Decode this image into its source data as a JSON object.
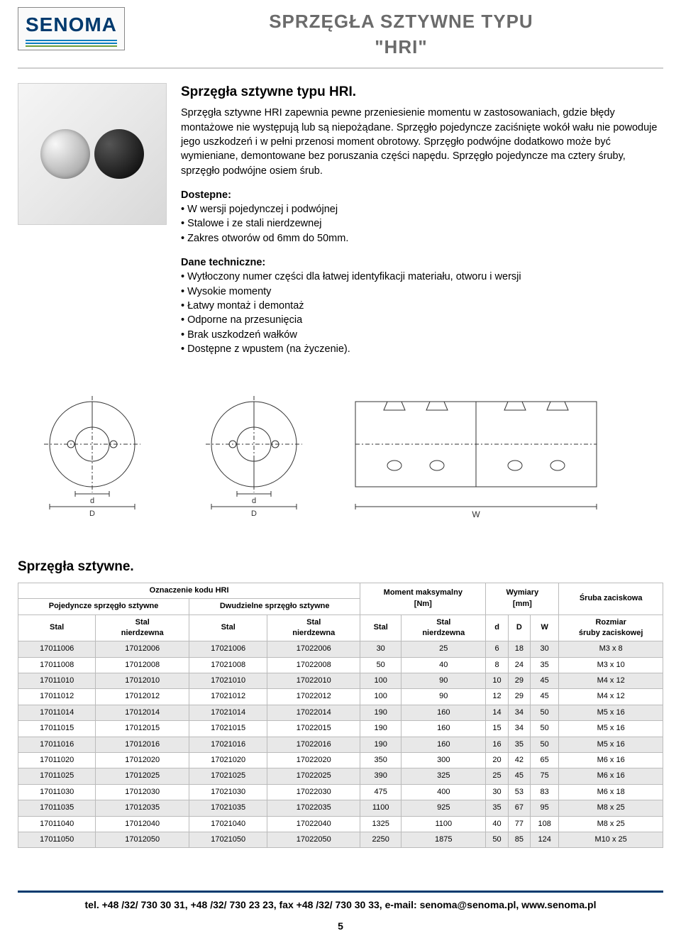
{
  "logo": {
    "text": "SENOMA",
    "stripe_colors": [
      "#0b7dbf",
      "#0b7dbf",
      "#6c9e3a"
    ]
  },
  "title": {
    "line1": "SPRZĘGŁA SZTYWNE TYPU",
    "line2": "\"HRI\""
  },
  "intro": {
    "heading": "Sprzęgła sztywne typu HRI.",
    "paragraph": "Sprzęgła sztywne HRI zapewnia pewne przeniesienie momentu w zastosowaniach, gdzie błędy montażowe nie występują lub są niepożądane. Sprzęgło pojedyncze zaciśnięte wokół wału nie powoduje jego uszkodzeń i w pełni przenosi moment obrotowy. Sprzęgło podwójne dodatkowo może być wymieniane, demontowane bez poruszania części napędu. Sprzęgło pojedyncze ma cztery śruby, sprzęgło podwójne osiem śrub."
  },
  "available": {
    "title": "Dostepne:",
    "items": [
      "W wersji pojedynczej i podwójnej",
      "Stalowe i ze stali nierdzewnej",
      "Zakres otworów od 6mm do 50mm."
    ]
  },
  "technical": {
    "title": "Dane techniczne:",
    "items": [
      "Wytłoczony numer części dla łatwej identyfikacji materiału, otworu i wersji",
      "Wysokie momenty",
      "Łatwy montaż i demontaż",
      "Odporne na przesunięcia",
      "Brak uszkodzeń wałków",
      "Dostępne z wpustem (na życzenie)."
    ]
  },
  "diagrams": {
    "stroke": "#333333",
    "fill": "#ffffff",
    "labels": {
      "d": "d",
      "D": "D",
      "W": "W"
    }
  },
  "table": {
    "section_title": "Sprzęgła sztywne.",
    "header_groups": {
      "code": "Oznaczenie kodu HRI",
      "single": "Pojedyncze sprzęgło sztywne",
      "double": "Dwudzielne sprzęgło sztywne",
      "moment": "Moment maksymalny\n[Nm]",
      "dims": "Wymiary\n[mm]",
      "screw": "Śruba zaciskowa"
    },
    "columns": [
      "Stal",
      "Stal\nnierdzewna",
      "Stal",
      "Stal\nnierdzewna",
      "Stal",
      "Stal\nnierdzewna",
      "d",
      "D",
      "W",
      "Rozmiar\nśruby zaciskowej"
    ],
    "rows": [
      [
        "17011006",
        "17012006",
        "17021006",
        "17022006",
        "30",
        "25",
        "6",
        "18",
        "30",
        "M3 x 8"
      ],
      [
        "17011008",
        "17012008",
        "17021008",
        "17022008",
        "50",
        "40",
        "8",
        "24",
        "35",
        "M3 x 10"
      ],
      [
        "17011010",
        "17012010",
        "17021010",
        "17022010",
        "100",
        "90",
        "10",
        "29",
        "45",
        "M4 x 12"
      ],
      [
        "17011012",
        "17012012",
        "17021012",
        "17022012",
        "100",
        "90",
        "12",
        "29",
        "45",
        "M4 x 12"
      ],
      [
        "17011014",
        "17012014",
        "17021014",
        "17022014",
        "190",
        "160",
        "14",
        "34",
        "50",
        "M5 x 16"
      ],
      [
        "17011015",
        "17012015",
        "17021015",
        "17022015",
        "190",
        "160",
        "15",
        "34",
        "50",
        "M5 x 16"
      ],
      [
        "17011016",
        "17012016",
        "17021016",
        "17022016",
        "190",
        "160",
        "16",
        "35",
        "50",
        "M5 x 16"
      ],
      [
        "17011020",
        "17012020",
        "17021020",
        "17022020",
        "350",
        "300",
        "20",
        "42",
        "65",
        "M6 x 16"
      ],
      [
        "17011025",
        "17012025",
        "17021025",
        "17022025",
        "390",
        "325",
        "25",
        "45",
        "75",
        "M6 x 16"
      ],
      [
        "17011030",
        "17012030",
        "17021030",
        "17022030",
        "475",
        "400",
        "30",
        "53",
        "83",
        "M6 x 18"
      ],
      [
        "17011035",
        "17012035",
        "17021035",
        "17022035",
        "1100",
        "925",
        "35",
        "67",
        "95",
        "M8 x 25"
      ],
      [
        "17011040",
        "17012040",
        "17021040",
        "17022040",
        "1325",
        "1100",
        "40",
        "77",
        "108",
        "M8 x 25"
      ],
      [
        "17011050",
        "17012050",
        "17021050",
        "17022050",
        "2250",
        "1875",
        "50",
        "85",
        "124",
        "M10 x 25"
      ]
    ]
  },
  "footer": {
    "text": "tel. +48 /32/ 730 30 31, +48 /32/ 730 23 23, fax +48 /32/ 730 30 33, e-mail: senoma@senoma.pl, www.senoma.pl",
    "page_no": "5"
  }
}
